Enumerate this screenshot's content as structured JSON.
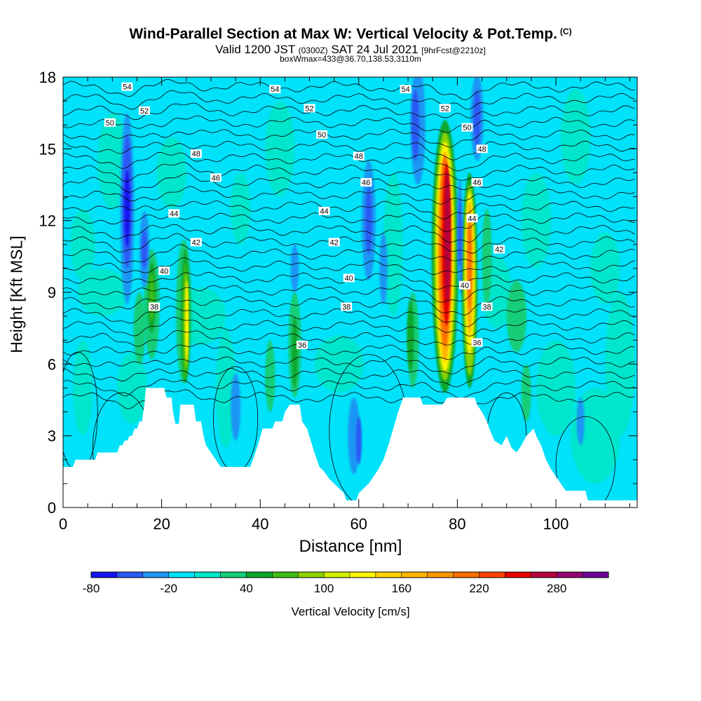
{
  "header": {
    "title": "Wind-Parallel Section at Max W: Vertical Velocity & Pot.Temp.",
    "copyright": "(C)",
    "valid_prefix": "Valid 1200 JST",
    "valid_utc": "(0300Z)",
    "valid_date": "SAT 24 Jul 2021",
    "forecast": "[9hrFcst@2210z]",
    "box_info": "boxWmax=433@36.70,138.53,3110m"
  },
  "chart_data": {
    "type": "heatmap",
    "title": "Wind-Parallel Section at Max W: Vertical Velocity & Pot.Temp.",
    "xlabel": "Distance [nm]",
    "ylabel": "Height [Kft MSL]",
    "xlim": [
      0,
      116.5
    ],
    "ylim": [
      0,
      18
    ],
    "x_ticks": [
      0,
      20,
      40,
      60,
      80,
      100
    ],
    "y_ticks": [
      0,
      3,
      6,
      9,
      12,
      15,
      18
    ],
    "colorbar": {
      "label": "Vertical Velocity [cm/s]",
      "tick_labels": [
        -80,
        -20,
        40,
        100,
        160,
        220,
        280
      ],
      "levels": [
        -80,
        -60,
        -40,
        -20,
        0,
        20,
        40,
        60,
        80,
        100,
        120,
        140,
        160,
        180,
        200,
        220,
        240,
        260,
        280,
        300,
        320
      ],
      "colors": [
        "#1414f0",
        "#2a5af5",
        "#1f96f5",
        "#00e1fa",
        "#00e6cc",
        "#14cd78",
        "#0aa82d",
        "#3cbe14",
        "#8cd200",
        "#d2f000",
        "#fff500",
        "#ffd200",
        "#ffb400",
        "#ff9600",
        "#ff6e00",
        "#ff4100",
        "#e60000",
        "#b4003c",
        "#96006e",
        "#6e0096"
      ]
    },
    "terrain_kft": [
      [
        0,
        1.7
      ],
      [
        2,
        1.7
      ],
      [
        2.5,
        2.0
      ],
      [
        6.5,
        2.0
      ],
      [
        7,
        2.3
      ],
      [
        11,
        2.3
      ],
      [
        11.5,
        2.6
      ],
      [
        12,
        2.6
      ],
      [
        12.5,
        2.8
      ],
      [
        13,
        2.8
      ],
      [
        13.5,
        3.0
      ],
      [
        14,
        3.0
      ],
      [
        14.5,
        3.3
      ],
      [
        15,
        3.3
      ],
      [
        15.5,
        3.6
      ],
      [
        16,
        3.6
      ],
      [
        16.5,
        4.3
      ],
      [
        16.8,
        5.0
      ],
      [
        20.5,
        5.0
      ],
      [
        21,
        4.6
      ],
      [
        22,
        4.6
      ],
      [
        22.3,
        4.0
      ],
      [
        22.8,
        3.5
      ],
      [
        23.5,
        3.5
      ],
      [
        23.8,
        4.3
      ],
      [
        26.5,
        4.3
      ],
      [
        27,
        3.6
      ],
      [
        28,
        3.6
      ],
      [
        28.5,
        3.0
      ],
      [
        29,
        2.6
      ],
      [
        30,
        2.3
      ],
      [
        31,
        2.0
      ],
      [
        32,
        1.7
      ],
      [
        38,
        1.7
      ],
      [
        38.5,
        2.0
      ],
      [
        39.5,
        2.6
      ],
      [
        40.5,
        3.3
      ],
      [
        42.5,
        3.3
      ],
      [
        43,
        3.6
      ],
      [
        44.5,
        3.6
      ],
      [
        45,
        4.0
      ],
      [
        46,
        4.3
      ],
      [
        48,
        4.3
      ],
      [
        48.5,
        3.6
      ],
      [
        49.5,
        3.3
      ],
      [
        51,
        2.3
      ],
      [
        52,
        1.7
      ],
      [
        53,
        1.5
      ],
      [
        54,
        1.2
      ],
      [
        55,
        1.0
      ],
      [
        56,
        0.8
      ],
      [
        57,
        0.6
      ],
      [
        57.5,
        0.3
      ],
      [
        59.5,
        0.3
      ],
      [
        60,
        0.6
      ],
      [
        61,
        0.8
      ],
      [
        62,
        1.0
      ],
      [
        63,
        1.3
      ],
      [
        64,
        1.6
      ],
      [
        65,
        2.0
      ],
      [
        66,
        2.6
      ],
      [
        67,
        3.3
      ],
      [
        68,
        4.0
      ],
      [
        69,
        4.6
      ],
      [
        72.5,
        4.6
      ],
      [
        73,
        4.3
      ],
      [
        77,
        4.3
      ],
      [
        78,
        4.6
      ],
      [
        83.5,
        4.6
      ],
      [
        84,
        4.3
      ],
      [
        85,
        4.0
      ],
      [
        86,
        3.6
      ],
      [
        86.5,
        3.3
      ],
      [
        87.5,
        2.8
      ],
      [
        89,
        2.6
      ],
      [
        90,
        3.0
      ],
      [
        91,
        2.5
      ],
      [
        92,
        2.3
      ],
      [
        93,
        2.6
      ],
      [
        94,
        3.0
      ],
      [
        95.5,
        3.3
      ],
      [
        96,
        3.0
      ],
      [
        97,
        2.6
      ],
      [
        98,
        2.0
      ],
      [
        99,
        1.6
      ],
      [
        100,
        1.3
      ],
      [
        101,
        1.0
      ],
      [
        102,
        0.7
      ],
      [
        106,
        0.7
      ],
      [
        106.5,
        0.3
      ],
      [
        116.5,
        0.3
      ]
    ],
    "theta_labels": [
      {
        "value": "54",
        "x": 13,
        "y": 17.6
      },
      {
        "value": "52",
        "x": 16.5,
        "y": 16.6
      },
      {
        "value": "50",
        "x": 9.5,
        "y": 16.1
      },
      {
        "value": "48",
        "x": 27,
        "y": 14.8
      },
      {
        "value": "46",
        "x": 31,
        "y": 13.8
      },
      {
        "value": "44",
        "x": 22.5,
        "y": 12.3
      },
      {
        "value": "42",
        "x": 27,
        "y": 11.1
      },
      {
        "value": "40",
        "x": 20.5,
        "y": 9.9
      },
      {
        "value": "38",
        "x": 18.5,
        "y": 8.4
      },
      {
        "value": "54",
        "x": 43,
        "y": 17.5
      },
      {
        "value": "52",
        "x": 50,
        "y": 16.7
      },
      {
        "value": "50",
        "x": 52.5,
        "y": 15.6
      },
      {
        "value": "48",
        "x": 60,
        "y": 14.7
      },
      {
        "value": "46",
        "x": 61.5,
        "y": 13.6
      },
      {
        "value": "44",
        "x": 53,
        "y": 12.4
      },
      {
        "value": "42",
        "x": 55,
        "y": 11.1
      },
      {
        "value": "40",
        "x": 58,
        "y": 9.6
      },
      {
        "value": "38",
        "x": 57.5,
        "y": 8.4
      },
      {
        "value": "36",
        "x": 48.5,
        "y": 6.8
      },
      {
        "value": "54",
        "x": 69.5,
        "y": 17.5
      },
      {
        "value": "52",
        "x": 77.5,
        "y": 16.7
      },
      {
        "value": "50",
        "x": 82,
        "y": 15.9
      },
      {
        "value": "48",
        "x": 85,
        "y": 15.0
      },
      {
        "value": "46",
        "x": 84,
        "y": 13.6
      },
      {
        "value": "44",
        "x": 83,
        "y": 12.1
      },
      {
        "value": "42",
        "x": 88.5,
        "y": 10.8
      },
      {
        "value": "40",
        "x": 81.5,
        "y": 9.3
      },
      {
        "value": "38",
        "x": 86,
        "y": 8.4
      },
      {
        "value": "36",
        "x": 84,
        "y": 6.9
      }
    ]
  }
}
